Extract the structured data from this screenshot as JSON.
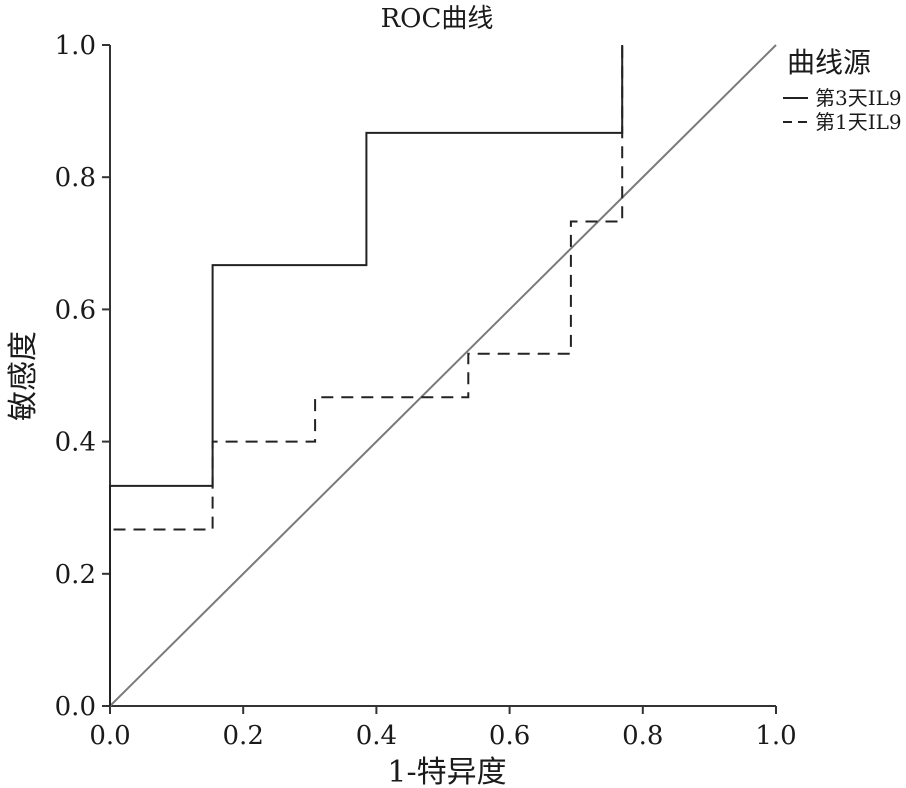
{
  "chart_data": {
    "type": "line",
    "title": "ROC曲线",
    "xlabel": "1-特异度",
    "ylabel": "敏感度",
    "xlim": [
      0,
      1
    ],
    "ylim": [
      0,
      1
    ],
    "x_ticks": [
      "0.0",
      "0.2",
      "0.4",
      "0.6",
      "0.8",
      "1.0"
    ],
    "y_ticks": [
      "0.0",
      "0.2",
      "0.4",
      "0.6",
      "0.8",
      "1.0"
    ],
    "grid": false,
    "legend": {
      "title": "曲线源",
      "position": "top-right"
    },
    "series": [
      {
        "name": "第3天IL9",
        "style": "solid",
        "color": "#222222",
        "x": [
          0,
          0,
          0.154,
          0.154,
          0.385,
          0.385,
          0.769,
          0.769
        ],
        "y": [
          0,
          0.333,
          0.333,
          0.667,
          0.667,
          0.867,
          0.867,
          1.0
        ]
      },
      {
        "name": "第1天IL9",
        "style": "dashed",
        "color": "#222222",
        "x": [
          0,
          0,
          0.154,
          0.154,
          0.308,
          0.308,
          0.538,
          0.538,
          0.692,
          0.692,
          0.769,
          0.769
        ],
        "y": [
          0,
          0.267,
          0.267,
          0.4,
          0.4,
          0.467,
          0.467,
          0.533,
          0.533,
          0.733,
          0.733,
          1.0
        ]
      }
    ],
    "reference_line": {
      "x": [
        0,
        1
      ],
      "y": [
        0,
        1
      ],
      "color": "#7a7a7a"
    }
  }
}
